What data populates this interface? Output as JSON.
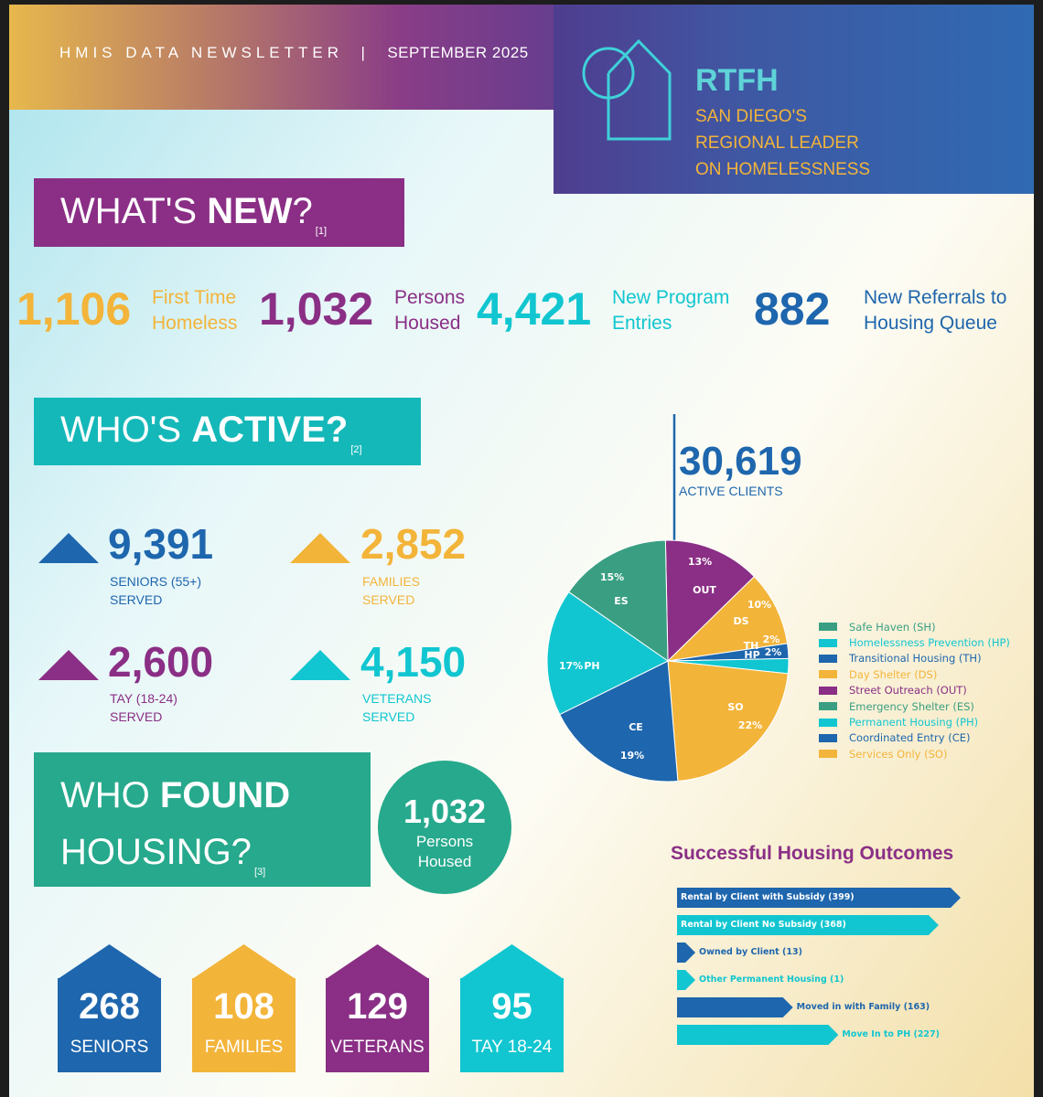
{
  "header": {
    "kicker": "HMIS DATA NEWSLETTER",
    "separator": "|",
    "date": "SEPTEMBER 2025",
    "org": "RTFH",
    "tagline": [
      "SAN DIEGO'S",
      "REGIONAL LEADER",
      "ON HOMELESSNESS"
    ]
  },
  "whats_new": {
    "heading_light": "WHAT'S ",
    "heading_bold": "NEW",
    "heading_tail": "?",
    "footnote": "[1]",
    "stats": [
      {
        "value": "1,106",
        "label": [
          "First Time",
          "Homeless"
        ],
        "color": "#f3b43a"
      },
      {
        "value": "1,032",
        "label": [
          "Persons",
          "Housed"
        ],
        "color": "#8a2f85"
      },
      {
        "value": "4,421",
        "label": [
          "New Program",
          "Entries"
        ],
        "color": "#11c6d0"
      },
      {
        "value": "882",
        "label": [
          "New Referrals to",
          "Housing Queue"
        ],
        "color": "#1e66ad"
      }
    ]
  },
  "whos_active": {
    "heading_light": "WHO'S ",
    "heading_bold": "ACTIVE?",
    "footnote": "[2]",
    "demographics": [
      {
        "value": "9,391",
        "label": [
          "SENIORS (55+)",
          "SERVED"
        ],
        "color": "#1e66ad"
      },
      {
        "value": "2,852",
        "label": [
          "FAMILIES",
          "SERVED"
        ],
        "color": "#f3b43a"
      },
      {
        "value": "2,600",
        "label": [
          "TAY (18-24)",
          "SERVED"
        ],
        "color": "#8a2f85"
      },
      {
        "value": "4,150",
        "label": [
          "VETERANS",
          "SERVED"
        ],
        "color": "#11c6d0"
      }
    ],
    "total": "30,619",
    "total_label": "ACTIVE CLIENTS"
  },
  "chart_data": [
    {
      "type": "pie",
      "total": "30,619",
      "total_label": "ACTIVE CLIENTS",
      "slices": [
        {
          "code": "OUT",
          "pct": 13,
          "label": "13%",
          "color": "#8a2f85"
        },
        {
          "code": "DS",
          "pct": 10,
          "label": "10%",
          "color": "#f3b43a"
        },
        {
          "code": "TH",
          "pct": 2,
          "label": "2%",
          "color": "#1e66ad"
        },
        {
          "code": "HP",
          "pct": 2,
          "label": "2%",
          "color": "#11c6d0"
        },
        {
          "code": "SO",
          "pct": 22,
          "label": "22%",
          "color": "#f3b43a"
        },
        {
          "code": "CE",
          "pct": 19,
          "label": "19%",
          "color": "#1e66ad"
        },
        {
          "code": "PH",
          "pct": 17,
          "label": "17%",
          "color": "#11c6d0"
        },
        {
          "code": "ES",
          "pct": 15,
          "label": "15%",
          "color": "#3a9f82"
        }
      ],
      "legend": [
        {
          "label": "Safe Haven (SH)",
          "color": "#3a9f82"
        },
        {
          "label": "Homelessness Prevention (HP)",
          "color": "#11c6d0"
        },
        {
          "label": "Transitional Housing (TH)",
          "color": "#1e66ad"
        },
        {
          "label": "Day Shelter (DS)",
          "color": "#f3b43a"
        },
        {
          "label": "Street Outreach (OUT)",
          "color": "#8a2f85"
        },
        {
          "label": "Emergency Shelter (ES)",
          "color": "#3a9f82"
        },
        {
          "label": "Permanent Housing (PH)",
          "color": "#11c6d0"
        },
        {
          "label": "Coordinated Entry (CE)",
          "color": "#1e66ad"
        },
        {
          "label": "Services Only (SO)",
          "color": "#f3b43a"
        }
      ]
    },
    {
      "type": "bar",
      "title": "Successful Housing Outcomes",
      "categories": [
        "Rental by Client with Subsidy (399)",
        "Rental by Client No Subsidy (368)",
        "Owned by Client (13)",
        "Other Permanent Housing (1)",
        "Moved in with Family (163)",
        "Move In to PH (227)"
      ],
      "values": [
        399,
        368,
        13,
        1,
        163,
        227
      ],
      "colors": [
        "#1e66ad",
        "#11c6d0",
        "#1e66ad",
        "#11c6d0",
        "#1e66ad",
        "#11c6d0"
      ]
    }
  ],
  "who_found_housing": {
    "heading_light": "WHO ",
    "heading_bold": "FOUND",
    "heading_line2": "HOUSING?",
    "footnote": "[3]",
    "circle_value": "1,032",
    "circle_label": [
      "Persons",
      "Housed"
    ],
    "houses": [
      {
        "value": "268",
        "label": "SENIORS",
        "color": "#1e66ad"
      },
      {
        "value": "108",
        "label": "FAMILIES",
        "color": "#f3b43a"
      },
      {
        "value": "129",
        "label": "VETERANS",
        "color": "#8a2f85"
      },
      {
        "value": "95",
        "label": "TAY 18-24",
        "color": "#11c6d0"
      }
    ]
  }
}
